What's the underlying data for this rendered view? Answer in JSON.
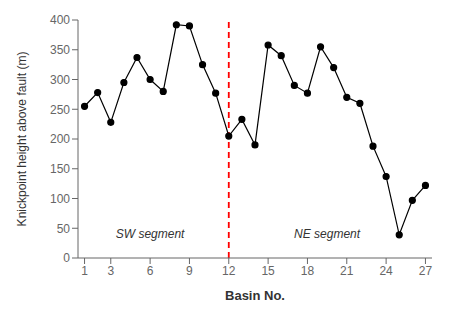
{
  "chart_data": {
    "type": "line",
    "x": [
      1,
      2,
      3,
      4,
      5,
      6,
      7,
      8,
      9,
      10,
      11,
      12,
      13,
      14,
      15,
      16,
      17,
      18,
      19,
      20,
      21,
      22,
      23,
      24,
      25,
      26,
      27
    ],
    "values": [
      255,
      278,
      228,
      295,
      337,
      300,
      280,
      392,
      390,
      325,
      277,
      205,
      233,
      190,
      358,
      340,
      290,
      277,
      355,
      320,
      270,
      260,
      188,
      137,
      39,
      97,
      122
    ],
    "color": "black",
    "marker": "circle",
    "xlabel": "Basin No.",
    "ylabel": "Knickpoint height above fault (m)",
    "xlim": [
      0.5,
      27.5
    ],
    "ylim": [
      0,
      400
    ],
    "xticks": [
      1,
      3,
      6,
      9,
      12,
      15,
      18,
      21,
      24,
      27
    ],
    "yticks": [
      0,
      50,
      100,
      150,
      200,
      250,
      300,
      350,
      400
    ],
    "grid": false,
    "vlines": [
      {
        "x": 12,
        "color": "red",
        "line_style": "dashed"
      }
    ],
    "annotations": [
      {
        "text": "SW segment",
        "x": 6.0,
        "y": 40
      },
      {
        "text": "NE segment",
        "x": 19.5,
        "y": 40
      }
    ]
  }
}
